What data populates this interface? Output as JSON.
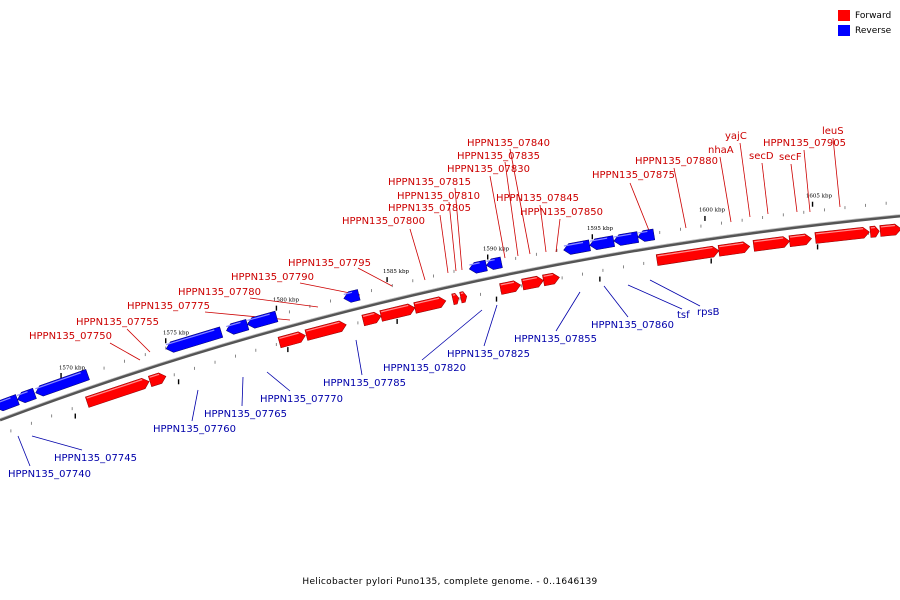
{
  "legend": {
    "forward": {
      "label": "Forward",
      "color": "#ff0000"
    },
    "reverse": {
      "label": "Reverse",
      "color": "#0000ff"
    }
  },
  "caption": "Helicobacter pylori Puno135, complete genome. - 0..1646139",
  "scale": {
    "unit": "kbp",
    "labels": [
      "1570 kbp",
      "1575 kbp",
      "1580 kbp",
      "1585 kbp",
      "1590 kbp",
      "1595 kbp",
      "1600 kbp",
      "1605 kbp"
    ]
  },
  "genes": {
    "forward": [
      "HPPN135_07750",
      "HPPN135_07755",
      "HPPN135_07775",
      "HPPN135_07780",
      "HPPN135_07790",
      "HPPN135_07795",
      "HPPN135_07800",
      "HPPN135_07805",
      "HPPN135_07810",
      "HPPN135_07815",
      "HPPN135_07830",
      "HPPN135_07835",
      "HPPN135_07840",
      "HPPN135_07845",
      "HPPN135_07850",
      "HPPN135_07875",
      "HPPN135_07880",
      "nhaA",
      "yajC",
      "secD",
      "secF",
      "HPPN135_07905",
      "leuS"
    ],
    "reverse": [
      "HPPN135_07740",
      "HPPN135_07745",
      "HPPN135_07760",
      "HPPN135_07765",
      "HPPN135_07770",
      "HPPN135_07785",
      "HPPN135_07820",
      "HPPN135_07825",
      "HPPN135_07855",
      "HPPN135_07860",
      "tsf",
      "rpsB"
    ]
  }
}
